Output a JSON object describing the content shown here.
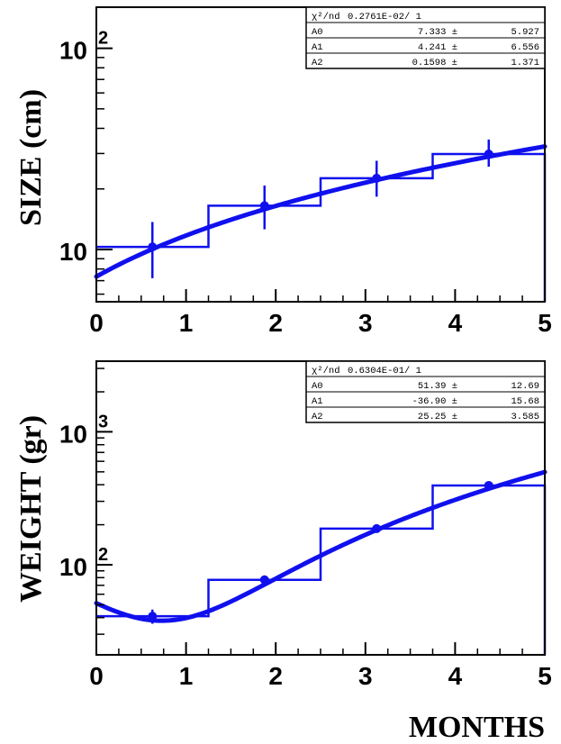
{
  "figure": {
    "xlabel": "MONTHS"
  },
  "chart_data": [
    {
      "type": "line",
      "name": "size-panel",
      "ylabel": "SIZE (cm)",
      "xlim": [
        0,
        5
      ],
      "ylim": [
        5.5,
        160
      ],
      "yscale": "log",
      "x_ticks": [
        "0",
        "1",
        "2",
        "3",
        "4",
        "5"
      ],
      "y_ticks": [
        {
          "value": 10,
          "base": "10",
          "exp": ""
        },
        {
          "value": 100,
          "base": "10",
          "exp": "2"
        }
      ],
      "histogram": {
        "edges": [
          0,
          1.25,
          2.5,
          3.75,
          5
        ],
        "values": [
          10.3,
          16.5,
          22.6,
          29.8
        ]
      },
      "points": {
        "x": [
          0.625,
          1.875,
          3.125,
          4.375
        ],
        "y": [
          10.3,
          16.5,
          22.6,
          29.8
        ],
        "yerr_low": [
          7.2,
          12.6,
          18.3,
          25.8
        ],
        "yerr_high": [
          13.7,
          20.8,
          27.6,
          35.2
        ]
      },
      "fit": {
        "A0": 7.333,
        "A1": 4.241,
        "A2": 0.1598
      },
      "stats": {
        "header_label": "χ²/nd",
        "header_value": "0.2761E-02/   1",
        "rows": [
          {
            "name": "A0",
            "value": "7.333 ±",
            "error": "5.927"
          },
          {
            "name": "A1",
            "value": "4.241 ±",
            "error": "6.556"
          },
          {
            "name": "A2",
            "value": "0.1598 ±",
            "error": "1.371"
          }
        ]
      },
      "colors": {
        "histogram": "#1010ee",
        "fit": "#1010ee",
        "axes": "#000000"
      }
    },
    {
      "type": "line",
      "name": "weight-panel",
      "ylabel": "WEIGHT (gr)",
      "xlim": [
        0,
        5
      ],
      "ylim": [
        21,
        3400
      ],
      "yscale": "log",
      "x_ticks": [
        "0",
        "1",
        "2",
        "3",
        "4",
        "5"
      ],
      "y_ticks": [
        {
          "value": 100,
          "base": "10",
          "exp": "2"
        },
        {
          "value": 1000,
          "base": "10",
          "exp": "3"
        }
      ],
      "histogram": {
        "edges": [
          0,
          1.25,
          2.5,
          3.75,
          5
        ],
        "values": [
          41,
          77,
          187,
          395
        ]
      },
      "points": {
        "x": [
          0.625,
          1.875,
          3.125,
          4.375
        ],
        "y": [
          41,
          77,
          187,
          395
        ],
        "yerr_low": [
          36,
          71,
          178,
          384
        ],
        "yerr_high": [
          46,
          83,
          196,
          406
        ]
      },
      "fit": {
        "A0": 51.39,
        "A1": -36.9,
        "A2": 25.25
      },
      "stats": {
        "header_label": "χ²/nd",
        "header_value": "0.6304E-01/   1",
        "rows": [
          {
            "name": "A0",
            "value": "51.39 ±",
            "error": "12.69"
          },
          {
            "name": "A1",
            "value": "-36.90 ±",
            "error": "15.68"
          },
          {
            "name": "A2",
            "value": "25.25 ±",
            "error": "3.585"
          }
        ]
      },
      "colors": {
        "histogram": "#1010ee",
        "fit": "#1010ee",
        "axes": "#000000"
      }
    }
  ]
}
